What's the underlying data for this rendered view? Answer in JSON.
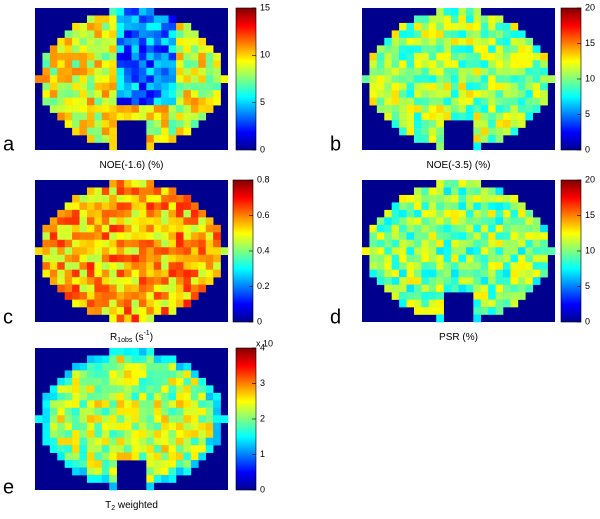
{
  "panels": [
    {
      "letter": "a",
      "caption": [
        {
          "text": "NOE(-1.6) (%)"
        }
      ],
      "colorbar": {
        "lim": [
          0,
          15
        ],
        "ticks": [
          0,
          5,
          10,
          15
        ]
      }
    },
    {
      "letter": "b",
      "caption": [
        {
          "text": "NOE(-3.5) (%)"
        }
      ],
      "colorbar": {
        "lim": [
          0,
          20
        ],
        "ticks": [
          0,
          5,
          10,
          15,
          20
        ]
      }
    },
    {
      "letter": "c",
      "caption": [
        {
          "text": "R"
        },
        {
          "sub": "1obs"
        },
        {
          "text": " (s"
        },
        {
          "sup": "-1"
        },
        {
          "text": ")"
        }
      ],
      "colorbar": {
        "lim": [
          0,
          0.8
        ],
        "ticks": [
          0,
          0.2,
          0.4,
          0.6,
          0.8
        ]
      }
    },
    {
      "letter": "d",
      "caption": [
        {
          "text": "PSR (%)"
        }
      ],
      "colorbar": {
        "lim": [
          0,
          20
        ],
        "ticks": [
          0,
          5,
          10,
          15,
          20
        ]
      }
    },
    {
      "letter": "e",
      "caption": [
        {
          "text": "T"
        },
        {
          "sub": "2"
        },
        {
          "text": " weighted"
        }
      ],
      "colorbar": {
        "lim": [
          0,
          4
        ],
        "ticks": [
          0,
          1,
          2,
          3,
          4
        ],
        "multiplier": "x 10"
      }
    }
  ]
}
